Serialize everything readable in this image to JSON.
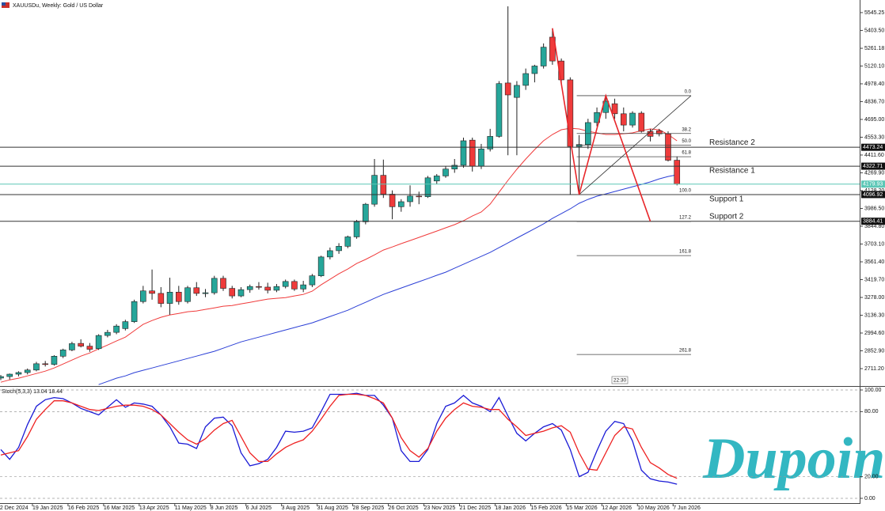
{
  "chart_data": [
    {
      "type": "candlestick",
      "title": "XAUUSDu, Weekly: Gold / US Dollar",
      "categories": [
        "22 Dec 2024",
        null,
        null,
        null,
        "19 Jan 2025",
        null,
        null,
        null,
        "16 Feb 2025",
        null,
        null,
        null,
        "16 Mar 2025",
        null,
        null,
        null,
        "13 Apr 2025",
        null,
        null,
        null,
        "11 May 2025",
        null,
        null,
        null,
        "8 Jun 2025",
        null,
        null,
        null,
        "6 Jul 2025",
        null,
        null,
        null,
        "3 Aug 2025",
        null,
        null,
        null,
        "31 Aug 2025",
        null,
        null,
        null,
        "28 Sep 2025",
        null,
        null,
        null,
        "26 Oct 2025",
        null,
        null,
        null,
        "23 Nov 2025",
        null,
        null,
        null,
        "21 Dec 2025",
        null,
        null,
        null,
        "18 Jan 2026",
        null,
        null,
        null,
        "15 Feb 2026",
        null,
        null,
        null,
        "15 Mar 2026",
        null,
        null,
        null,
        "12 Apr 2026",
        null,
        null,
        null,
        "10 May 2026",
        null,
        null,
        null,
        "7 Jun 2026"
      ],
      "open": [
        2636,
        2648,
        2667,
        2680,
        2700,
        2750,
        2745,
        2810,
        2860,
        2912,
        2890,
        2870,
        2975,
        3000,
        3030,
        3085,
        3245,
        3330,
        3310,
        3230,
        3320,
        3245,
        3355,
        3310,
        3315,
        3430,
        3350,
        3290,
        3340,
        3365,
        3360,
        3335,
        3365,
        3405,
        3345,
        3378,
        3450,
        3600,
        3650,
        3685,
        3760,
        3880,
        4020,
        4250,
        4100,
        4000,
        4040,
        4085,
        4080,
        4205,
        4245,
        4300,
        4330,
        4530,
        4322,
        4460,
        4560,
        4985,
        4870,
        4966,
        5060,
        5120,
        5350,
        5160,
        5010,
        4480,
        4495,
        4670,
        4750,
        4820,
        4740,
        4650,
        4745,
        4600,
        4605,
        4580,
        4370
      ],
      "high": [
        2660,
        2672,
        2690,
        2712,
        2765,
        2772,
        2818,
        2870,
        2925,
        2945,
        2915,
        2985,
        3020,
        3065,
        3100,
        3260,
        3370,
        3500,
        3360,
        3435,
        3370,
        3370,
        3400,
        3345,
        3450,
        3450,
        3370,
        3360,
        3380,
        3400,
        3395,
        3385,
        3420,
        3420,
        3410,
        3465,
        3610,
        3675,
        3710,
        3770,
        3895,
        4030,
        4380,
        4375,
        4130,
        4060,
        4170,
        4120,
        4245,
        4260,
        4320,
        4380,
        4550,
        4550,
        4500,
        4620,
        5000,
        5595,
        5000,
        5100,
        5130,
        5300,
        5420,
        5180,
        5030,
        4570,
        4700,
        4790,
        4884,
        4860,
        4790,
        4760,
        4760,
        4620,
        4620,
        4600,
        4400
      ],
      "low": [
        2620,
        2625,
        2650,
        2665,
        2690,
        2728,
        2735,
        2795,
        2850,
        2880,
        2845,
        2860,
        2960,
        2985,
        3015,
        3075,
        3230,
        3260,
        3200,
        3140,
        3220,
        3230,
        3290,
        3280,
        3300,
        3330,
        3270,
        3280,
        3315,
        3340,
        3310,
        3320,
        3350,
        3330,
        3320,
        3360,
        3440,
        3580,
        3625,
        3670,
        3745,
        3860,
        4000,
        4070,
        3900,
        3960,
        4000,
        4020,
        4070,
        4180,
        4230,
        4270,
        4310,
        4280,
        4300,
        4440,
        4550,
        4410,
        4410,
        4930,
        4990,
        5100,
        5130,
        4980,
        4100,
        4097,
        4460,
        4640,
        4700,
        4700,
        4600,
        4630,
        4590,
        4520,
        4560,
        4360,
        4170
      ],
      "close": [
        2648,
        2667,
        2680,
        2700,
        2750,
        2745,
        2810,
        2860,
        2910,
        2890,
        2865,
        2975,
        3000,
        3050,
        3085,
        3245,
        3330,
        3310,
        3230,
        3320,
        3245,
        3355,
        3310,
        3315,
        3430,
        3350,
        3290,
        3340,
        3365,
        3360,
        3335,
        3365,
        3405,
        3345,
        3378,
        3450,
        3600,
        3650,
        3685,
        3760,
        3880,
        4020,
        4250,
        4100,
        4000,
        4040,
        4085,
        4080,
        4230,
        4245,
        4300,
        4330,
        4525,
        4322,
        4460,
        4560,
        4980,
        4890,
        4966,
        5060,
        5120,
        5270,
        5160,
        5010,
        4480,
        4495,
        4670,
        4750,
        4840,
        4740,
        4650,
        4745,
        4600,
        4560,
        4580,
        4370,
        4180
      ],
      "up_color": "#26a69a",
      "down_color": "#ef3b3b",
      "series": [
        {
          "color": "#f03a3a",
          "values": [
            2603,
            2622,
            2635,
            2653,
            2672,
            2691,
            2716,
            2748,
            2779,
            2811,
            2836,
            2868,
            2899,
            2931,
            2962,
            3013,
            3063,
            3094,
            3120,
            3139,
            3151,
            3164,
            3170,
            3183,
            3195,
            3208,
            3214,
            3227,
            3239,
            3252,
            3265,
            3271,
            3277,
            3290,
            3302,
            3328,
            3378,
            3422,
            3466,
            3504,
            3548,
            3580,
            3617,
            3655,
            3680,
            3706,
            3731,
            3756,
            3781,
            3806,
            3832,
            3857,
            3888,
            3926,
            3958,
            4021,
            4115,
            4210,
            4298,
            4380,
            4455,
            4525,
            4575,
            4613,
            4625,
            4619,
            4600,
            4588,
            4575,
            4575,
            4581,
            4588,
            4606,
            4619,
            4613,
            4575,
            4525
          ]
        },
        {
          "color": "#2b3fd6",
          "values": [
            null,
            null,
            null,
            null,
            null,
            null,
            null,
            null,
            null,
            null,
            null,
            2584,
            2609,
            2635,
            2653,
            2679,
            2698,
            2716,
            2735,
            2754,
            2773,
            2792,
            2811,
            2830,
            2849,
            2874,
            2899,
            2924,
            2943,
            2962,
            2981,
            3000,
            3019,
            3038,
            3057,
            3076,
            3101,
            3126,
            3151,
            3176,
            3208,
            3239,
            3271,
            3302,
            3328,
            3353,
            3378,
            3403,
            3428,
            3454,
            3479,
            3510,
            3542,
            3573,
            3605,
            3636,
            3674,
            3712,
            3750,
            3788,
            3825,
            3863,
            3907,
            3945,
            3983,
            4027,
            4058,
            4084,
            4102,
            4121,
            4140,
            4159,
            4178,
            4197,
            4222,
            4241,
            4254
          ]
        }
      ],
      "ylim": [
        2579,
        5633
      ],
      "yticks": [
        5545.25,
        {
          "value": 5403.5,
          "label": "5403.50"
        },
        5261.18,
        {
          "value": 5120.1,
          "label": "5120.10"
        },
        {
          "value": 4978.4,
          "label": "4978.40"
        },
        {
          "value": 4836.7,
          "label": "4836.70"
        },
        {
          "value": 4695,
          "label": "4695.00"
        },
        {
          "value": 4553.3,
          "label": "4553.30"
        },
        {
          "value": 4411.6,
          "label": "4411.60"
        },
        {
          "value": 4269.9,
          "label": "4269.90"
        },
        {
          "value": 4128.2,
          "label": "4128.20"
        },
        {
          "value": 3986.5,
          "label": "3986.50"
        },
        {
          "value": 3844.8,
          "label": "3844.80"
        },
        {
          "value": 3703.1,
          "label": "3703.10"
        },
        {
          "value": 3561.4,
          "label": "3561.40"
        },
        {
          "value": 3419.7,
          "label": "3419.70"
        },
        {
          "value": 3278,
          "label": "3278.00"
        },
        {
          "value": 3136.3,
          "label": "3136.30"
        },
        {
          "value": 2994.6,
          "label": "2994.60"
        },
        {
          "value": 2852.9,
          "label": "2852.90"
        },
        {
          "value": 2711.2,
          "label": "2711.20"
        }
      ],
      "levels": [
        {
          "label": "Resistance 2",
          "price": 4473.24,
          "color": "#333333"
        },
        {
          "label": "Resistance 1",
          "price": 4322.71,
          "color": "#333333"
        },
        {
          "price": 4179.93,
          "color": "#5cc7b6"
        },
        {
          "label": "Support 1",
          "price": 4096.92,
          "color": "#333333"
        },
        {
          "label": "Support 2",
          "price": 3884.41,
          "color": "#333333"
        }
      ],
      "fib": {
        "labels": [
          "0.0",
          "38.2",
          "50.0",
          "61.8",
          "100.0",
          "127.2",
          "161.8",
          "261.8"
        ],
        "values": [
          4884,
          4583,
          4490,
          4398,
          4097,
          3883,
          3611,
          2824
        ],
        "color": "#444444"
      },
      "zigzag": {
        "bars": [
          62,
          65,
          68,
          73
        ],
        "values": [
          5420,
          4096.92,
          4884,
          3884.41
        ],
        "color": "#e8262a"
      },
      "timer": "22:30",
      "logo": "Dupoin"
    },
    {
      "type": "line",
      "title": "Stoch(5,3,3) 13.04 18.44",
      "series": [
        {
          "color": "#1a1ad6",
          "values": [
            45,
            36,
            47,
            68,
            85,
            91,
            93,
            92,
            88,
            83,
            80,
            77,
            84,
            91,
            84,
            88,
            87,
            85,
            77,
            66,
            51,
            50,
            46,
            66,
            74,
            75,
            67,
            42,
            30,
            32,
            36,
            47,
            62,
            61,
            62,
            65,
            80,
            96,
            96,
            96,
            97,
            95,
            95,
            86,
            74,
            44,
            34,
            34,
            45,
            69,
            85,
            88,
            95,
            88,
            85,
            80,
            93,
            76,
            60,
            53,
            60,
            66,
            69,
            63,
            45,
            20,
            24,
            44,
            62,
            71,
            69,
            53,
            26,
            18,
            16,
            15,
            13.04
          ]
        },
        {
          "color": "#ee2020",
          "values": [
            40,
            42,
            44,
            57,
            73,
            82,
            90,
            90,
            88,
            85,
            82,
            81,
            83,
            85,
            86,
            86,
            85,
            82,
            77,
            69,
            61,
            54,
            50,
            55,
            63,
            69,
            72,
            57,
            42,
            34,
            34,
            41,
            47,
            51,
            54,
            62,
            73,
            85,
            95,
            96,
            96,
            95,
            92,
            88,
            74,
            56,
            44,
            38,
            46,
            62,
            74,
            82,
            88,
            85,
            84,
            82,
            82,
            73,
            66,
            58,
            60,
            62,
            65,
            67,
            61,
            42,
            27,
            26,
            42,
            58,
            66,
            64,
            47,
            33,
            28,
            22,
            18.44
          ]
        }
      ],
      "ylim": [
        -4.4,
        102.2
      ],
      "yticks": [
        {
          "value": 100,
          "label": "100.00"
        },
        {
          "value": 80,
          "label": "80.00"
        },
        {
          "value": 20,
          "label": "20.00"
        },
        {
          "value": 0,
          "label": "0.00"
        }
      ],
      "grid": true
    }
  ]
}
